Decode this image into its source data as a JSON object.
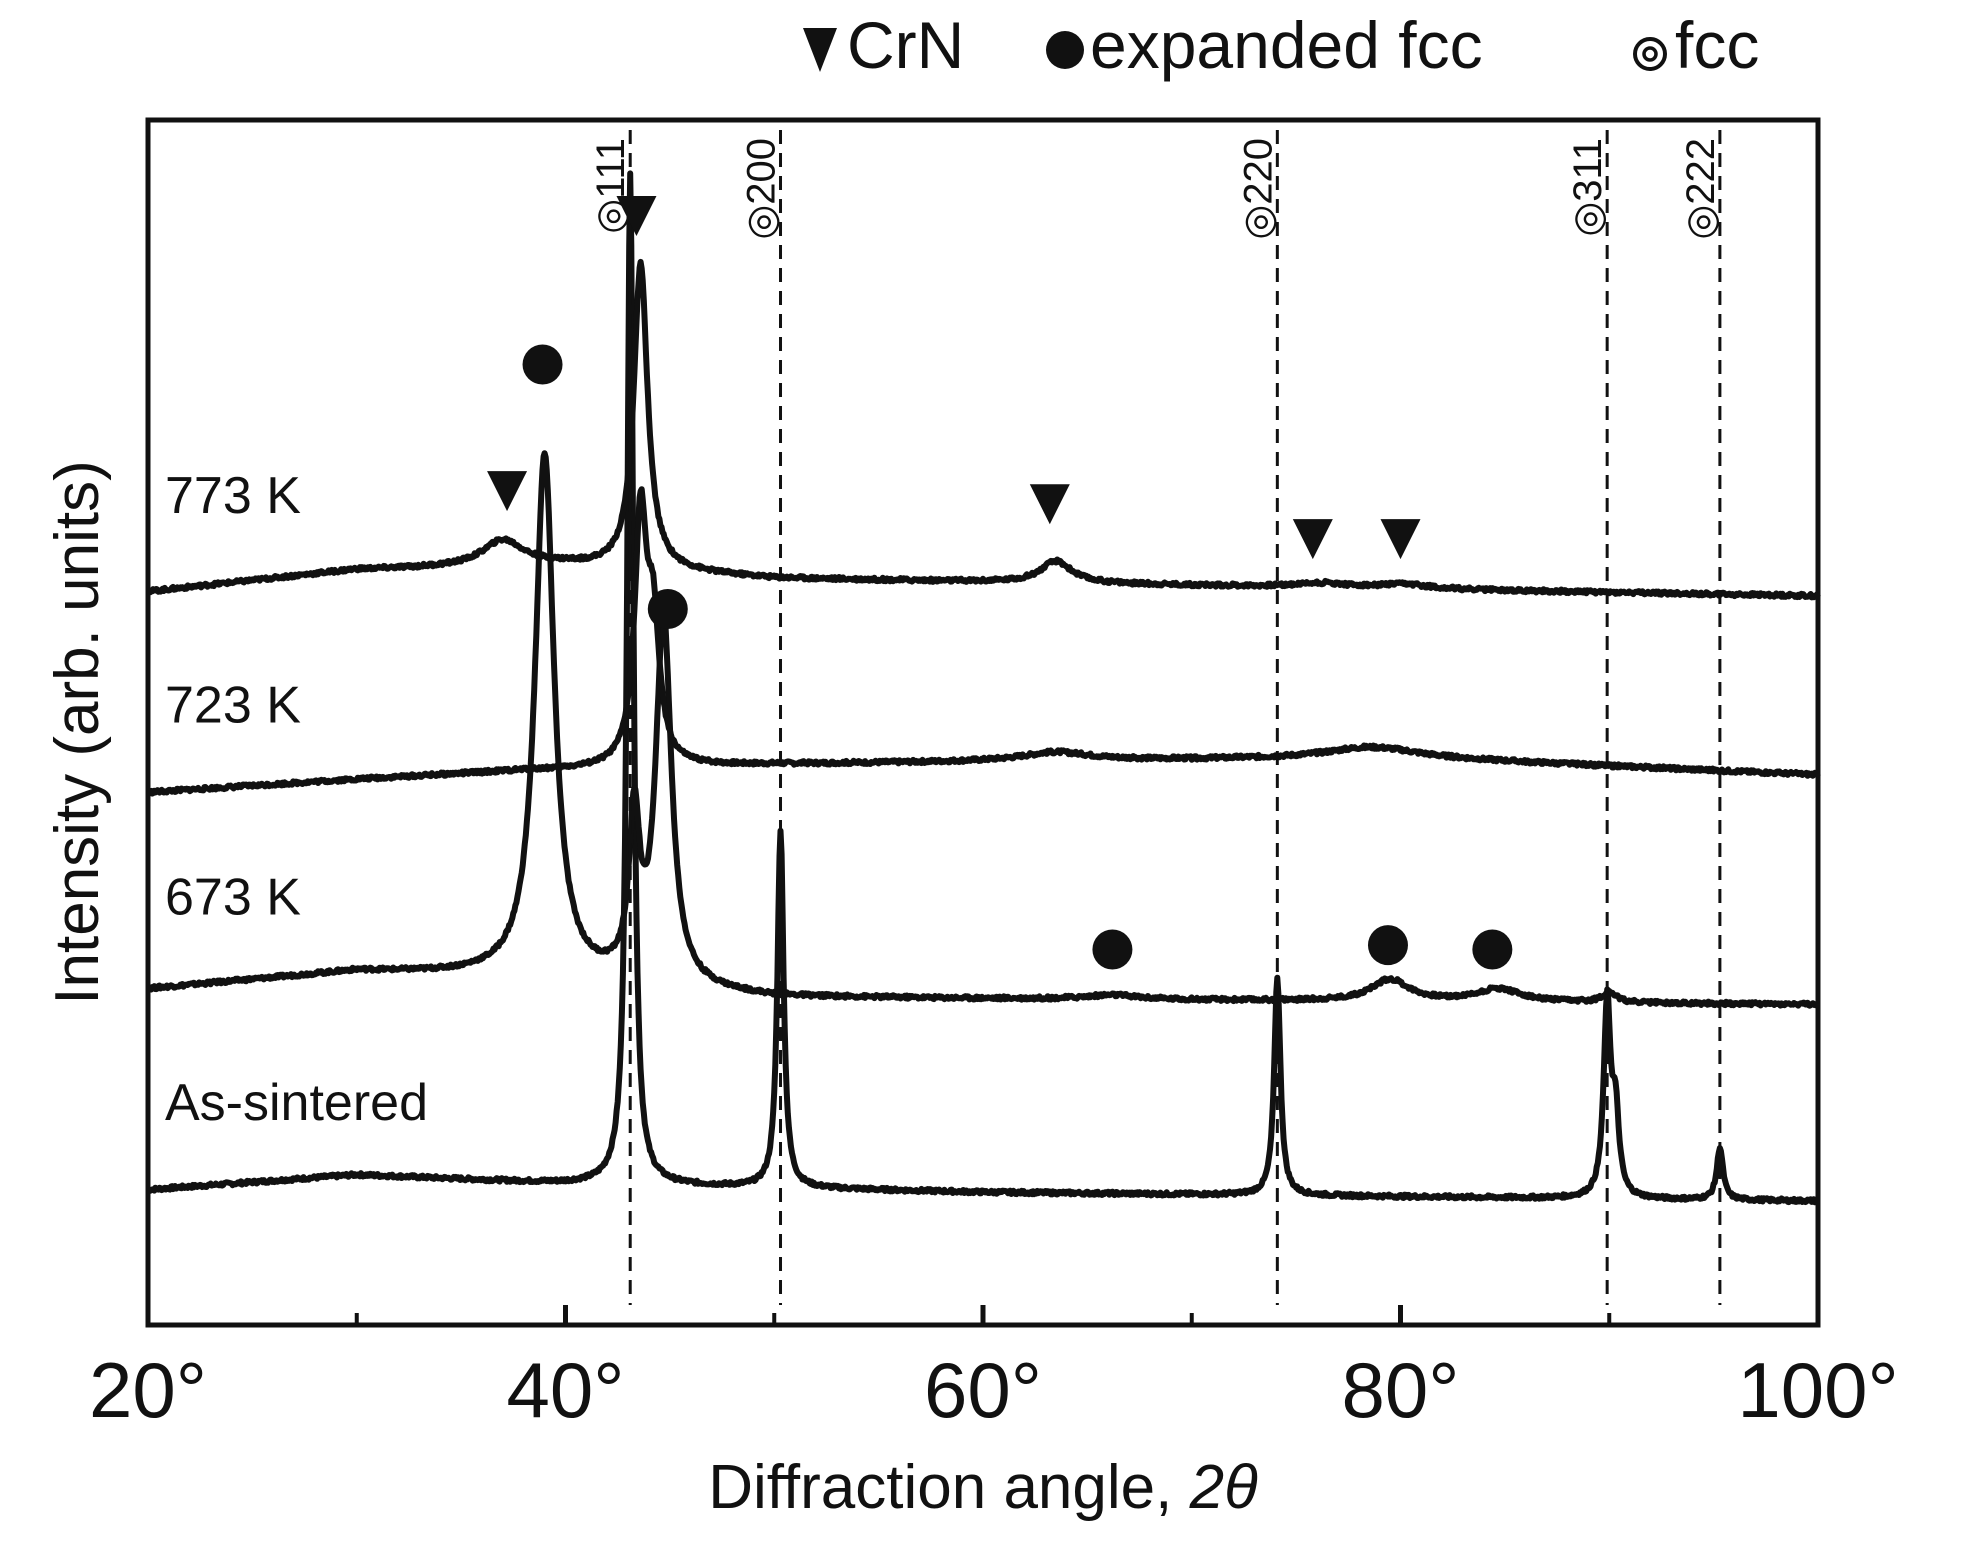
{
  "chart_data": {
    "type": "line",
    "title": "",
    "xlabel": "Diffraction angle, ",
    "xlabel_italic": "2θ",
    "ylabel": "Intensity (arb. units)",
    "xlim": [
      20,
      100
    ],
    "x_major_ticks": [
      20,
      40,
      60,
      80,
      100
    ],
    "x_minor_ticks": [
      30,
      50,
      70,
      90
    ],
    "x_tick_labels": [
      "20°",
      "40°",
      "60°",
      "80°",
      "100°"
    ],
    "grid": false,
    "legend": {
      "placement": "top",
      "entries": [
        {
          "symbol": "triangle",
          "label": "CrN"
        },
        {
          "symbol": "dot",
          "label": "expanded  fcc"
        },
        {
          "symbol": "ring",
          "label": "fcc"
        }
      ]
    },
    "reference_lines": [
      {
        "label": "◎111",
        "x": 43.1
      },
      {
        "label": "◎200",
        "x": 50.3
      },
      {
        "label": "◎220",
        "x": 74.1
      },
      {
        "label": "◎311",
        "x": 89.9
      },
      {
        "label": "◎222",
        "x": 95.3
      }
    ],
    "series": [
      {
        "name": "As-sintered",
        "baseline": 1.55,
        "ramp": [
          [
            20,
            1.55
          ],
          [
            30,
            1.72
          ],
          [
            40,
            1.62
          ],
          [
            60,
            1.52
          ],
          [
            100,
            1.42
          ]
        ],
        "peaks": [
          [
            43.1,
            11.6,
            0.18
          ],
          [
            50.3,
            4.1,
            0.18
          ],
          [
            74.1,
            2.5,
            0.18
          ],
          [
            89.9,
            2.2,
            0.2
          ],
          [
            90.3,
            0.9,
            0.2
          ],
          [
            95.3,
            0.6,
            0.18
          ]
        ]
      },
      {
        "name": "673 K",
        "baseline": 3.85,
        "ramp": [
          [
            20,
            3.85
          ],
          [
            30,
            4.05
          ],
          [
            36,
            4.0
          ],
          [
            50,
            3.75
          ],
          [
            100,
            3.67
          ]
        ],
        "peaks": [
          [
            39.0,
            6.0,
            0.55
          ],
          [
            44.7,
            4.2,
            0.45
          ],
          [
            43.3,
            1.8,
            0.3
          ],
          [
            66.2,
            0.05,
            1.5
          ],
          [
            79.5,
            0.25,
            1.1
          ],
          [
            84.7,
            0.15,
            1.3
          ],
          [
            90.0,
            0.12,
            0.4
          ]
        ]
      },
      {
        "name": "723 K",
        "baseline": 6.1,
        "ramp": [
          [
            20,
            6.1
          ],
          [
            30,
            6.25
          ],
          [
            38,
            6.35
          ],
          [
            50,
            6.42
          ],
          [
            60,
            6.45
          ],
          [
            80,
            6.5
          ],
          [
            100,
            6.3
          ]
        ],
        "peaks": [
          [
            43.6,
            2.8,
            0.35
          ],
          [
            44.2,
            1.5,
            0.35
          ],
          [
            63.5,
            0.1,
            2.0
          ],
          [
            78.5,
            0.12,
            2.5
          ]
        ]
      },
      {
        "name": "773 K",
        "baseline": 8.4,
        "ramp": [
          [
            20,
            8.4
          ],
          [
            30,
            8.65
          ],
          [
            40,
            8.7
          ],
          [
            50,
            8.55
          ],
          [
            100,
            8.35
          ]
        ],
        "peaks": [
          [
            43.6,
            3.5,
            0.4
          ],
          [
            37.0,
            0.3,
            1.2
          ],
          [
            63.5,
            0.25,
            0.9
          ],
          [
            76.2,
            0.05,
            1.5
          ],
          [
            80.2,
            0.05,
            1.5
          ]
        ]
      }
    ],
    "markers": [
      {
        "type": "triangle",
        "x": 37.2,
        "y": 9.55
      },
      {
        "type": "triangle",
        "x": 43.4,
        "y": 12.7
      },
      {
        "type": "triangle",
        "x": 63.2,
        "y": 9.4
      },
      {
        "type": "triangle",
        "x": 75.8,
        "y": 9.0
      },
      {
        "type": "triangle",
        "x": 80.0,
        "y": 9.0
      },
      {
        "type": "dot",
        "x": 38.9,
        "y": 11.0
      },
      {
        "type": "dot",
        "x": 44.9,
        "y": 8.2
      },
      {
        "type": "dot",
        "x": 66.2,
        "y": 4.3
      },
      {
        "type": "dot",
        "x": 79.4,
        "y": 4.35
      },
      {
        "type": "dot",
        "x": 84.4,
        "y": 4.3
      }
    ],
    "sample_labels": [
      {
        "text": "773 K",
        "y": 9.3
      },
      {
        "text": "723 K",
        "y": 6.9
      },
      {
        "text": "673 K",
        "y": 4.7
      },
      {
        "text": "As-sintered",
        "y": 2.35
      }
    ]
  }
}
